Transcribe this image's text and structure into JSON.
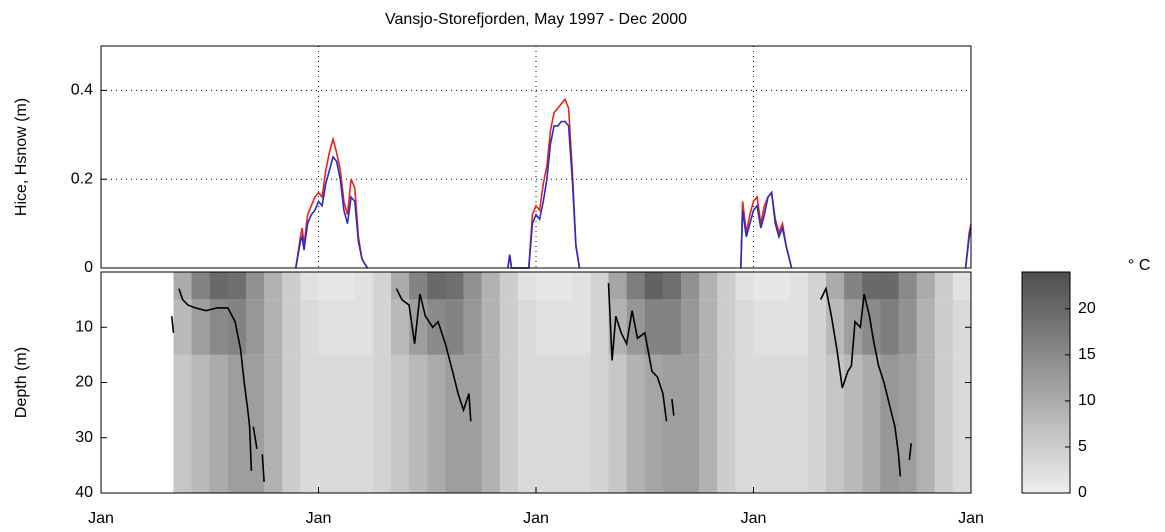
{
  "chart_data": [
    {
      "type": "line",
      "title": "Vansjo-Storefjorden, May 1997 - Dec 2000",
      "ylabel": "Hice, Hsnow (m)",
      "x": [
        10.75,
        11.0,
        11.1,
        11.2,
        11.4,
        11.6,
        11.8,
        12.0,
        12.2,
        12.4,
        12.6,
        12.8,
        13.0,
        13.2,
        13.4,
        13.6,
        13.8,
        14.0,
        14.2,
        14.4,
        14.7,
        18,
        22.45,
        22.55,
        22.65,
        23.6,
        23.8,
        24.0,
        24.2,
        24.4,
        24.6,
        24.8,
        25.0,
        25.2,
        25.4,
        25.6,
        25.8,
        26.0,
        26.2,
        26.4,
        30,
        35.3,
        35.4,
        35.6,
        35.8,
        36.0,
        36.2,
        36.4,
        36.6,
        36.8,
        37.0,
        37.2,
        37.4,
        37.6,
        37.8,
        38.1,
        42,
        47.7,
        47.9,
        48
      ],
      "series": [
        {
          "color": "#e8231a",
          "values": [
            0,
            0.07,
            0.09,
            0.05,
            0.12,
            0.14,
            0.16,
            0.17,
            0.16,
            0.22,
            0.26,
            0.29,
            0.26,
            0.22,
            0.15,
            0.12,
            0.2,
            0.18,
            0.07,
            0.02,
            0,
            null,
            0,
            0.03,
            0,
            0,
            0.12,
            0.14,
            0.13,
            0.19,
            0.23,
            0.31,
            0.35,
            0.36,
            0.37,
            0.38,
            0.36,
            0.22,
            0.05,
            0,
            null,
            0,
            0.15,
            0.08,
            0.12,
            0.15,
            0.16,
            0.1,
            0.14,
            0.16,
            0.17,
            0.11,
            0.08,
            0.1,
            0.05,
            0,
            null,
            0,
            0.08,
            0.1
          ]
        },
        {
          "color": "#2a2ac8",
          "values": [
            0,
            0.06,
            0.07,
            0.04,
            0.1,
            0.12,
            0.13,
            0.15,
            0.14,
            0.19,
            0.22,
            0.25,
            0.24,
            0.2,
            0.13,
            0.1,
            0.16,
            0.15,
            0.06,
            0.02,
            0,
            null,
            0,
            0.03,
            0,
            0,
            0.1,
            0.12,
            0.11,
            0.15,
            0.2,
            0.28,
            0.32,
            0.32,
            0.33,
            0.33,
            0.32,
            0.2,
            0.05,
            0,
            null,
            0,
            0.13,
            0.07,
            0.1,
            0.13,
            0.14,
            0.09,
            0.12,
            0.16,
            0.17,
            0.1,
            0.07,
            0.09,
            0.05,
            0,
            null,
            0,
            0.07,
            0.09
          ]
        }
      ],
      "xlim": [
        0,
        48
      ],
      "xticks": [
        0,
        12,
        24,
        36,
        48
      ],
      "ylim": [
        0,
        0.5
      ],
      "yticks": [
        0,
        0.2,
        0.4
      ],
      "grid": true
    },
    {
      "type": "heatmap",
      "ylabel": "Depth (m)",
      "x": [
        4,
        5,
        6,
        7,
        8,
        9,
        10,
        11,
        12,
        13,
        14,
        15,
        16,
        17,
        18,
        19,
        20,
        21,
        22,
        23,
        24,
        25,
        26,
        27,
        28,
        29,
        30,
        31,
        32,
        33,
        34,
        35,
        36,
        37,
        38,
        39,
        40,
        41,
        42,
        43,
        44,
        45,
        46,
        47,
        48
      ],
      "depths": [
        0,
        5,
        15,
        40
      ],
      "values": [
        [
          10,
          16,
          20,
          19,
          14,
          9,
          5,
          2,
          1,
          1,
          2,
          4,
          10,
          16,
          20,
          19,
          14,
          9,
          5,
          2,
          1,
          1,
          2,
          4,
          11,
          17,
          21,
          19,
          14,
          9,
          5,
          2,
          1,
          1,
          2,
          4,
          10,
          16,
          20,
          20,
          15,
          10,
          5,
          2
        ],
        [
          8,
          12,
          15,
          16,
          13,
          9,
          5,
          3,
          2,
          2,
          2,
          4,
          8,
          12,
          15,
          16,
          13,
          9,
          5,
          3,
          2,
          2,
          2,
          4,
          9,
          13,
          16,
          16,
          13,
          9,
          5,
          3,
          2,
          2,
          2,
          4,
          8,
          12,
          15,
          17,
          14,
          9,
          5,
          3
        ],
        [
          6,
          8,
          10,
          12,
          12,
          9,
          5,
          3,
          3,
          3,
          3,
          4,
          6,
          8,
          10,
          12,
          12,
          9,
          5,
          3,
          3,
          3,
          3,
          4,
          6,
          9,
          11,
          12,
          12,
          9,
          5,
          3,
          3,
          3,
          3,
          4,
          6,
          8,
          10,
          13,
          12,
          9,
          5,
          3
        ]
      ],
      "contour": {
        "color": "#000000",
        "x": [
          3.9,
          4.0,
          4.1,
          4.3,
          4.5,
          4.8,
          5.2,
          5.8,
          6.4,
          7.0,
          7.4,
          7.7,
          7.9,
          8.1,
          8.2,
          8.3,
          8.35,
          8.4,
          8.6,
          8.7,
          8.9,
          9.0,
          12,
          16.3,
          16.6,
          17.0,
          17.3,
          17.6,
          17.9,
          18.3,
          18.6,
          19.0,
          19.4,
          19.7,
          20.0,
          20.3,
          20.4,
          24,
          28.0,
          28.2,
          28.4,
          28.7,
          29.0,
          29.3,
          29.6,
          30.0,
          30.4,
          30.7,
          31.0,
          31.2,
          31.35,
          31.5,
          31.6,
          36,
          39.7,
          40.0,
          40.3,
          40.6,
          40.9,
          41.2,
          41.4,
          41.6,
          41.9,
          42.1,
          42.4,
          42.6,
          42.9,
          43.2,
          43.5,
          43.8,
          44.0,
          44.1,
          44.4,
          44.6,
          44.7
        ],
        "values": [
          8,
          11,
          null,
          3,
          5,
          6,
          6.5,
          7,
          6.5,
          6.5,
          9,
          14,
          20,
          25,
          28,
          36,
          null,
          28,
          32,
          null,
          33,
          38,
          null,
          3,
          5,
          6,
          13,
          4,
          8,
          10,
          9,
          13,
          18,
          22,
          25,
          22,
          27,
          null,
          2,
          16,
          8,
          11,
          13,
          7,
          12,
          11,
          18,
          19,
          22,
          27,
          null,
          23,
          26,
          null,
          5,
          3,
          8,
          14,
          21,
          18,
          17,
          9,
          10,
          4,
          8,
          12,
          17,
          20,
          24,
          28,
          33,
          37,
          null,
          34,
          31
        ]
      },
      "xlim": [
        0,
        48
      ],
      "xticks": [
        {
          "value": 0,
          "label": "Jan"
        },
        {
          "value": 12,
          "label": "Jan"
        },
        {
          "value": 24,
          "label": "Jan"
        },
        {
          "value": 36,
          "label": "Jan"
        },
        {
          "value": 48,
          "label": "Jan"
        }
      ],
      "ylim": [
        0,
        40
      ],
      "invert_y": true,
      "yticks": [
        10,
        20,
        30,
        40
      ],
      "grid": false,
      "colorbar": {
        "label": "° C",
        "lim": [
          0,
          24
        ],
        "ticks": [
          0,
          5,
          10,
          15,
          20
        ]
      }
    }
  ]
}
